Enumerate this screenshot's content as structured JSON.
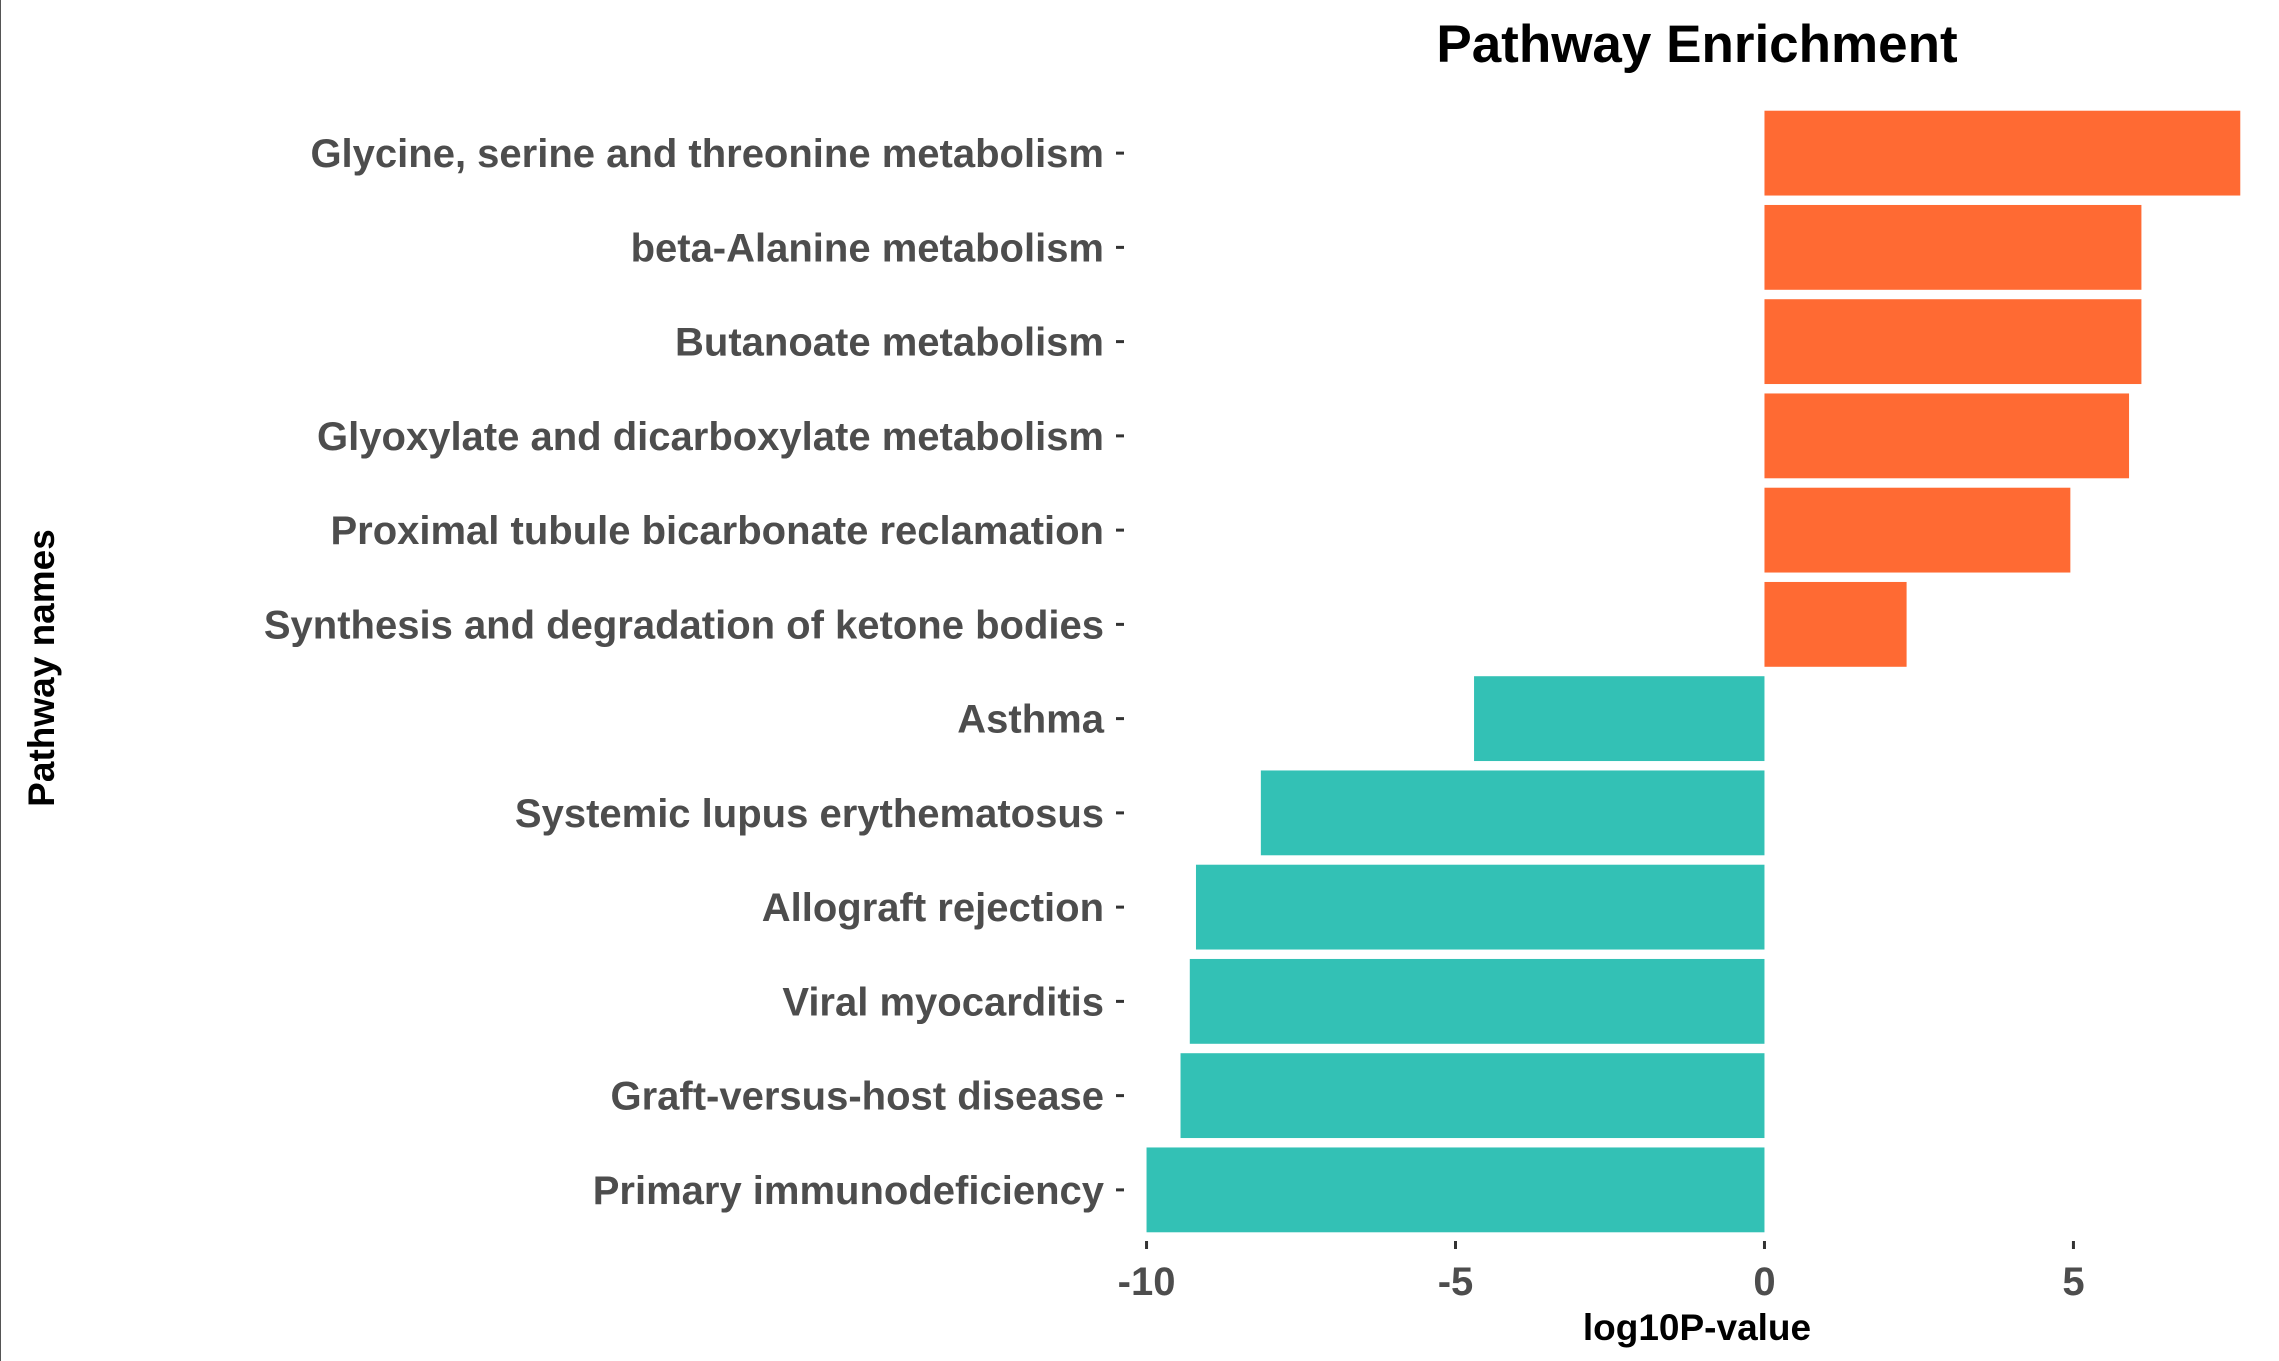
{
  "chart_data": {
    "type": "bar",
    "orientation": "horizontal",
    "title": "Pathway Enrichment",
    "xlabel": "log10P-value",
    "ylabel": "Pathway names",
    "xlim": [
      -10.3,
      8.1
    ],
    "xticks": [
      -10,
      -5,
      0,
      5
    ],
    "xtick_labels": [
      "-10",
      "-5",
      "0",
      "5"
    ],
    "grid": false,
    "legend": "none",
    "categories": [
      "Glycine, serine and threonine metabolism",
      "beta-Alanine metabolism",
      "Butanoate metabolism",
      "Glyoxylate and dicarboxylate metabolism",
      "Proximal tubule bicarbonate reclamation",
      "Synthesis and degradation of ketone bodies",
      "Asthma",
      "Systemic lupus erythematosus",
      "Allograft rejection",
      "Viral myocarditis",
      "Graft-versus-host disease",
      "Primary immunodeficiency"
    ],
    "values": [
      7.7,
      6.1,
      6.1,
      5.9,
      4.95,
      2.3,
      -4.7,
      -8.15,
      -9.2,
      -9.3,
      -9.45,
      -10.0
    ],
    "colors": {
      "positive": "#FF6A33",
      "negative": "#33C1B5"
    }
  }
}
